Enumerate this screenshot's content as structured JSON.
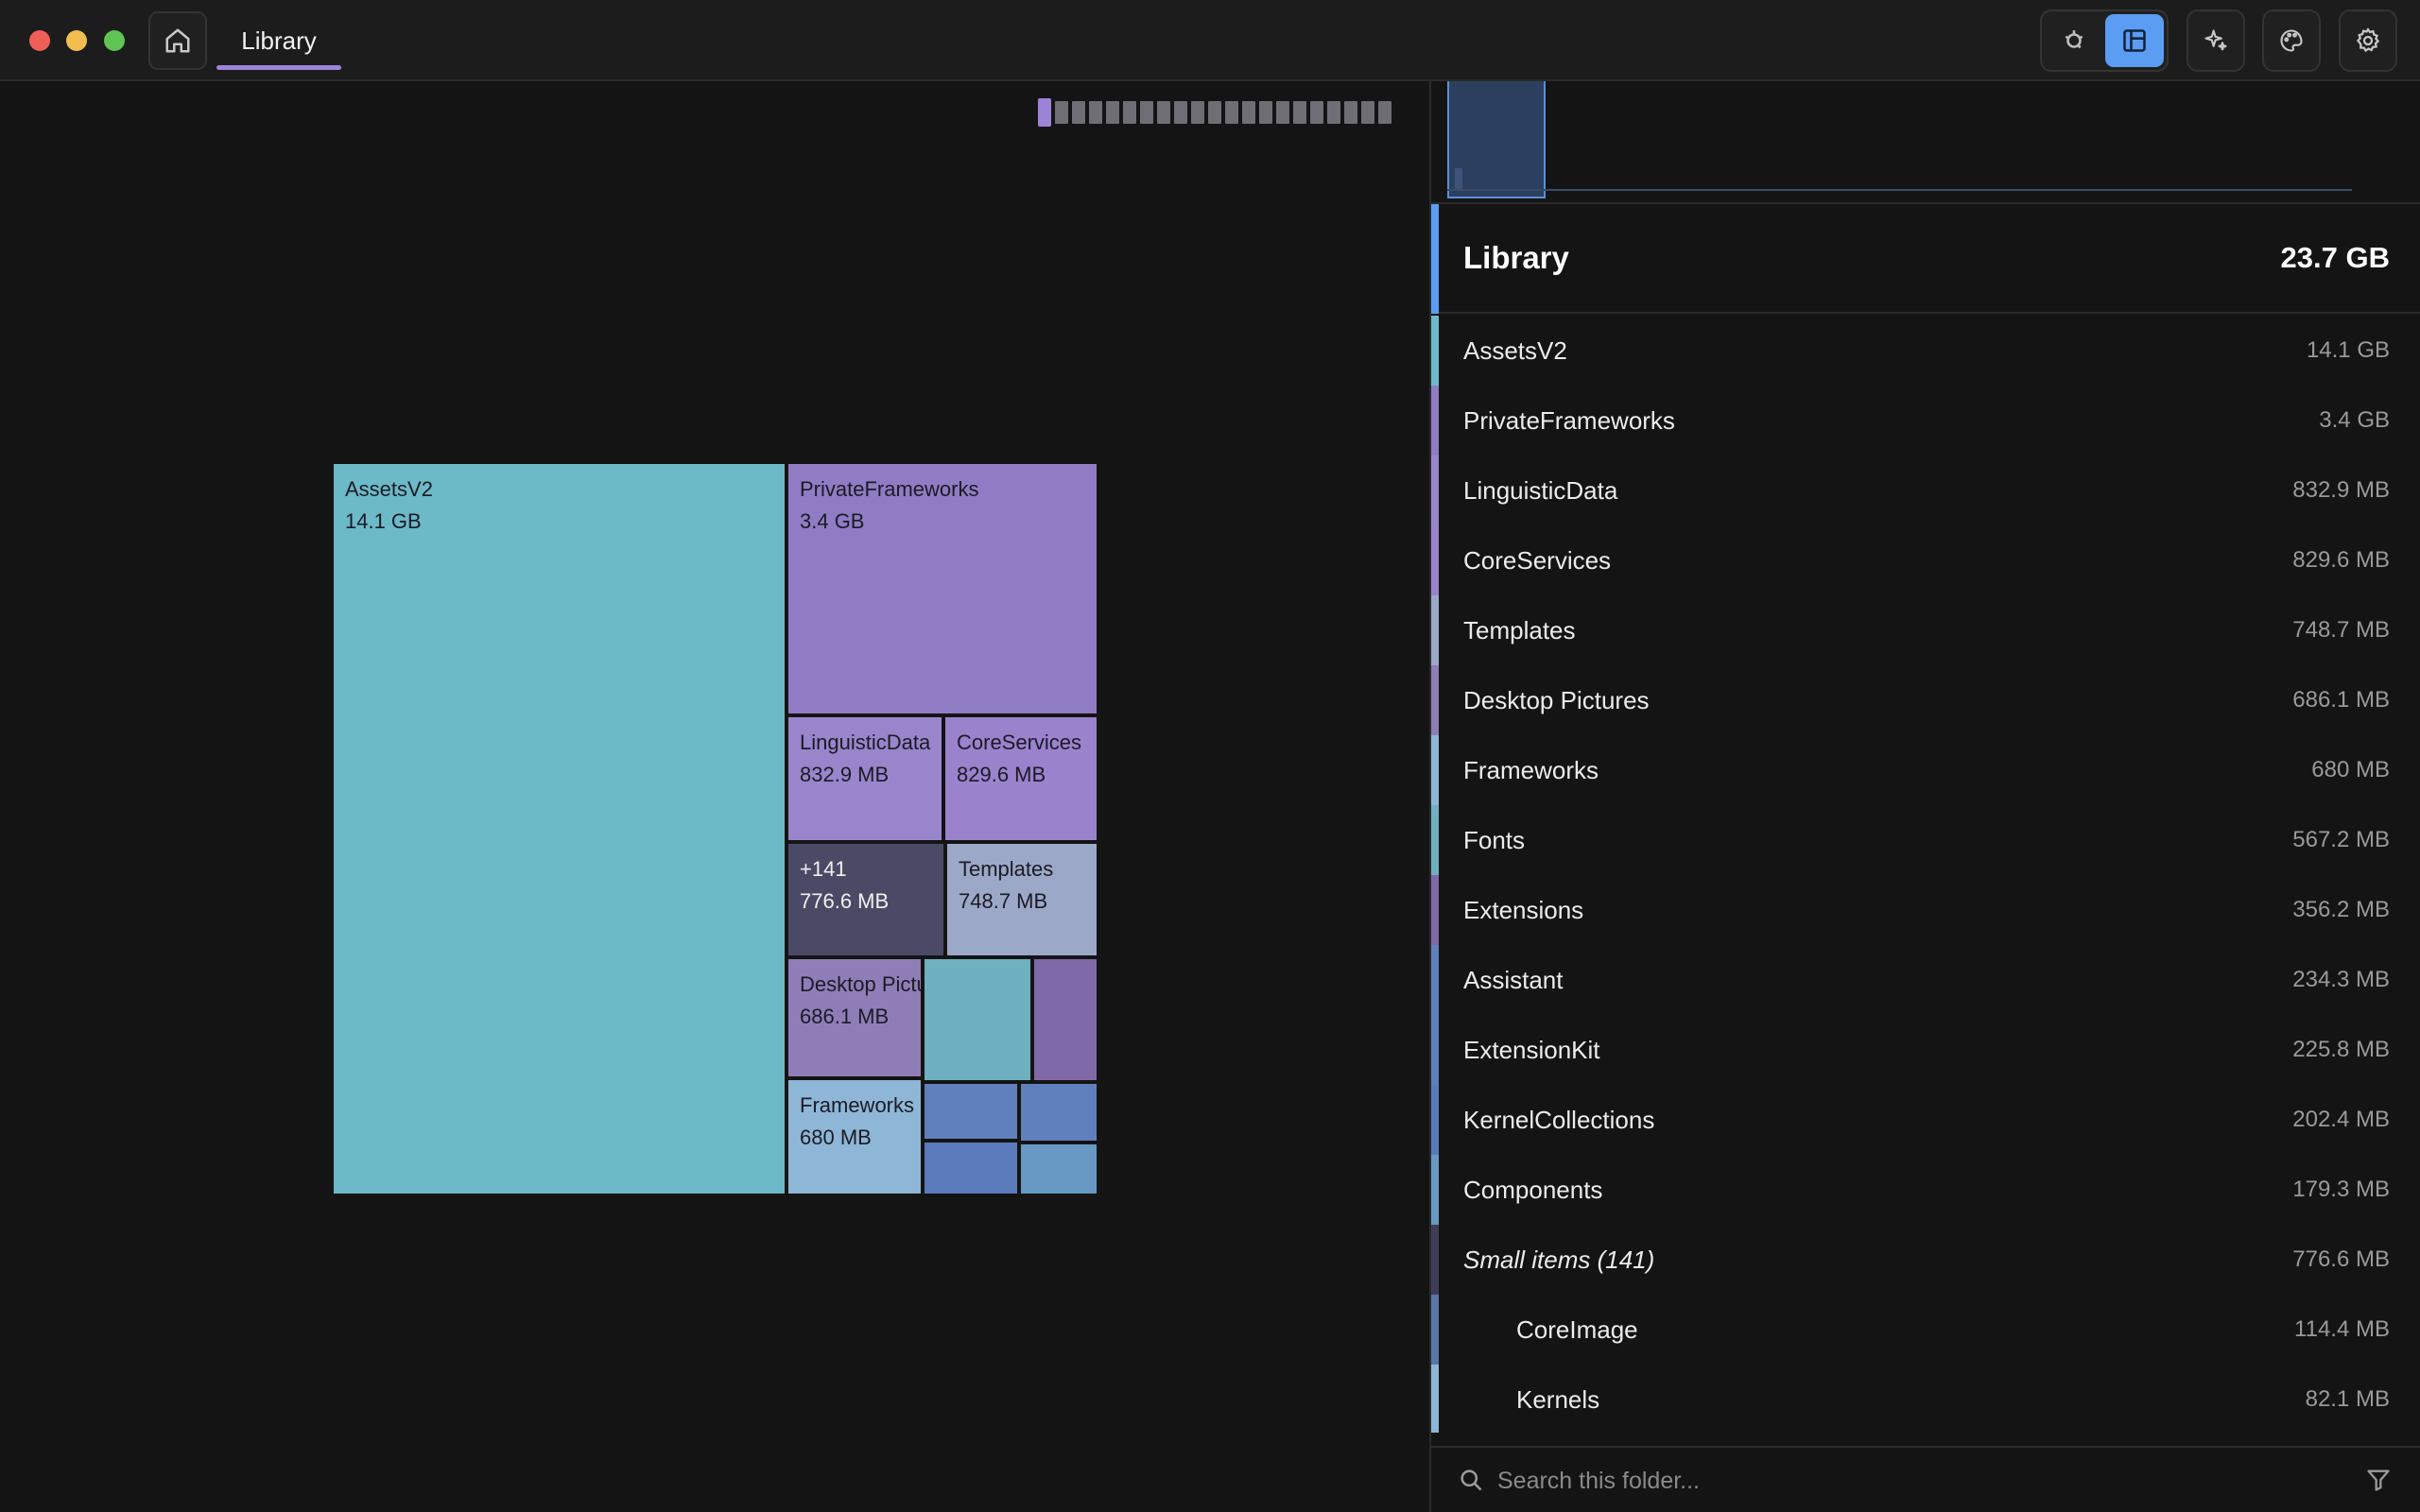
{
  "window": {
    "tab_label": "Library"
  },
  "toolbar": {
    "view_buttons": [
      {
        "icon": "sunburst-icon",
        "active": false
      },
      {
        "icon": "treemap-icon",
        "active": true
      }
    ],
    "tools": [
      "sparkle-icon",
      "palette-icon",
      "gear-icon"
    ],
    "accent": "#5b9df2"
  },
  "breadcrumb_segments": 21,
  "treemap": {
    "cells": [
      {
        "name": "AssetsV2",
        "size": "14.1 GB",
        "color": "#6cb9c8"
      },
      {
        "name": "PrivateFrameworks",
        "size": "3.4 GB",
        "color": "#8f7cc4"
      },
      {
        "name": "LinguisticData",
        "size": "832.9 MB",
        "color": "#9985cc"
      },
      {
        "name": "CoreServices",
        "size": "829.6 MB",
        "color": "#9a82cc"
      },
      {
        "name": "+141",
        "size": "776.6 MB",
        "color": "#4b4a66"
      },
      {
        "name": "Templates",
        "size": "748.7 MB",
        "color": "#9ca8c8"
      },
      {
        "name": "Desktop Pictures",
        "size": "686.1 MB",
        "color": "#8f7db8"
      },
      {
        "name": "Fonts",
        "size": "",
        "color": "#6fb0c0"
      },
      {
        "name": "Extensions",
        "size": "",
        "color": "#8069a8"
      },
      {
        "name": "Frameworks",
        "size": "680 MB",
        "color": "#8eb6d6"
      },
      {
        "name": "Assistant",
        "size": "",
        "color": "#5f80bc"
      },
      {
        "name": "ExtensionKit",
        "size": "",
        "color": "#5f80bc"
      },
      {
        "name": "KernelCollections",
        "size": "",
        "color": "#5a7abb"
      },
      {
        "name": "Components",
        "size": "",
        "color": "#6799c4"
      }
    ]
  },
  "summary": {
    "name": "Library",
    "size": "23.7 GB"
  },
  "items": [
    {
      "name": "AssetsV2",
      "size": "14.1 GB",
      "color": "#6cb9c8",
      "kind": "normal"
    },
    {
      "name": "PrivateFrameworks",
      "size": "3.4 GB",
      "color": "#8f7cc4",
      "kind": "normal"
    },
    {
      "name": "LinguisticData",
      "size": "832.9 MB",
      "color": "#9985cc",
      "kind": "normal"
    },
    {
      "name": "CoreServices",
      "size": "829.6 MB",
      "color": "#9a82cc",
      "kind": "normal"
    },
    {
      "name": "Templates",
      "size": "748.7 MB",
      "color": "#9ca8c8",
      "kind": "normal"
    },
    {
      "name": "Desktop Pictures",
      "size": "686.1 MB",
      "color": "#8f7db8",
      "kind": "normal"
    },
    {
      "name": "Frameworks",
      "size": "680 MB",
      "color": "#8eb6d6",
      "kind": "normal"
    },
    {
      "name": "Fonts",
      "size": "567.2 MB",
      "color": "#6fb0c0",
      "kind": "normal"
    },
    {
      "name": "Extensions",
      "size": "356.2 MB",
      "color": "#8069a8",
      "kind": "normal"
    },
    {
      "name": "Assistant",
      "size": "234.3 MB",
      "color": "#5f80bc",
      "kind": "normal"
    },
    {
      "name": "ExtensionKit",
      "size": "225.8 MB",
      "color": "#5f80bc",
      "kind": "normal"
    },
    {
      "name": "KernelCollections",
      "size": "202.4 MB",
      "color": "#5a7abb",
      "kind": "normal"
    },
    {
      "name": "Components",
      "size": "179.3 MB",
      "color": "#6799c4",
      "kind": "normal"
    },
    {
      "name": "Small items (141)",
      "size": "776.6 MB",
      "color": "#3f3e58",
      "kind": "small"
    },
    {
      "name": "CoreImage",
      "size": "114.4 MB",
      "color": "#5a76a8",
      "kind": "child"
    },
    {
      "name": "Kernels",
      "size": "82.1 MB",
      "color": "#8eb6d6",
      "kind": "child"
    }
  ],
  "search": {
    "placeholder": "Search this folder..."
  }
}
